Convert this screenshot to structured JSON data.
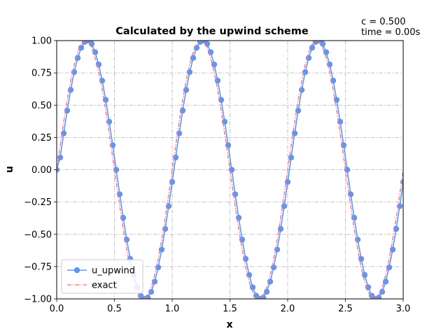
{
  "chart_data": {
    "type": "line",
    "title": "Calculated by the upwind scheme",
    "xlabel": "x",
    "ylabel": "u",
    "xlim": [
      0.0,
      3.0
    ],
    "ylim": [
      -1.0,
      1.0
    ],
    "grid": true,
    "grid_style": "dash-dot",
    "legend_placement": "lower-left",
    "annotations": [
      "c = 0.500",
      "time = 0.00s"
    ],
    "x_ticks": [
      0.0,
      0.5,
      1.0,
      1.5,
      2.0,
      2.5,
      3.0
    ],
    "x_tick_labels": [
      "0.0",
      "0.5",
      "1.0",
      "1.5",
      "2.0",
      "2.5",
      "3.0"
    ],
    "y_ticks": [
      -1.0,
      -0.75,
      -0.5,
      -0.25,
      0.0,
      0.25,
      0.5,
      0.75,
      1.0
    ],
    "y_tick_labels": [
      "−1.00",
      "−0.75",
      "−0.50",
      "−0.25",
      "0.00",
      "0.25",
      "0.50",
      "0.75",
      "1.00"
    ],
    "series": [
      {
        "name": "u_upwind",
        "color": "#6495ED",
        "style": "solid line with circle markers",
        "x": [
          0.0,
          0.0303,
          0.0606,
          0.0909,
          0.1212,
          0.1515,
          0.1818,
          0.2121,
          0.2424,
          0.2727,
          0.303,
          0.3333,
          0.3636,
          0.3939,
          0.4242,
          0.4545,
          0.4848,
          0.5152,
          0.5455,
          0.5758,
          0.6061,
          0.6364,
          0.6667,
          0.697,
          0.7273,
          0.7576,
          0.7879,
          0.8182,
          0.8485,
          0.8788,
          0.9091,
          0.9394,
          0.9697,
          1.0,
          1.0303,
          1.0606,
          1.0909,
          1.1212,
          1.1515,
          1.1818,
          1.2121,
          1.2424,
          1.2727,
          1.303,
          1.3333,
          1.3636,
          1.3939,
          1.4242,
          1.4545,
          1.4848,
          1.5152,
          1.5455,
          1.5758,
          1.6061,
          1.6364,
          1.6667,
          1.697,
          1.7273,
          1.7576,
          1.7879,
          1.8182,
          1.8485,
          1.8788,
          1.9091,
          1.9394,
          1.9697,
          2.0,
          2.0303,
          2.0606,
          2.0909,
          2.1212,
          2.1515,
          2.1818,
          2.2121,
          2.2424,
          2.2727,
          2.303,
          2.3333,
          2.3636,
          2.3939,
          2.4242,
          2.4545,
          2.4848,
          2.5152,
          2.5455,
          2.5758,
          2.6061,
          2.6364,
          2.6667,
          2.697,
          2.7273,
          2.7576,
          2.7879,
          2.8182,
          2.8485,
          2.8788,
          2.9091,
          2.9394,
          2.9697,
          3.0
        ],
        "y": [
          0.0,
          0.095,
          0.282,
          0.458,
          0.618,
          0.756,
          0.866,
          0.945,
          0.99,
          1.0,
          0.975,
          0.91,
          0.815,
          0.69,
          0.541,
          0.372,
          0.19,
          0.0,
          -0.19,
          -0.372,
          -0.541,
          -0.69,
          -0.815,
          -0.91,
          -0.975,
          -1.0,
          -0.99,
          -0.945,
          -0.866,
          -0.756,
          -0.618,
          -0.458,
          -0.282,
          -0.095,
          0.095,
          0.282,
          0.458,
          0.618,
          0.756,
          0.866,
          0.945,
          0.99,
          1.0,
          0.975,
          0.91,
          0.815,
          0.69,
          0.541,
          0.372,
          0.19,
          0.0,
          -0.19,
          -0.372,
          -0.541,
          -0.69,
          -0.815,
          -0.91,
          -0.975,
          -1.0,
          -0.99,
          -0.945,
          -0.866,
          -0.756,
          -0.618,
          -0.458,
          -0.282,
          -0.095,
          0.095,
          0.282,
          0.458,
          0.618,
          0.756,
          0.866,
          0.945,
          0.99,
          1.0,
          0.975,
          0.91,
          0.815,
          0.69,
          0.541,
          0.372,
          0.19,
          0.0,
          -0.19,
          -0.372,
          -0.541,
          -0.69,
          -0.815,
          -0.91,
          -0.975,
          -1.0,
          -0.99,
          -0.945,
          -0.866,
          -0.756,
          -0.618,
          -0.458,
          -0.282,
          -0.095
        ]
      },
      {
        "name": "exact",
        "color": "#F08080",
        "style": "dash-dot line",
        "function": "sin(2*pi*x)",
        "x": [
          0.0,
          0.025,
          0.05,
          0.075,
          0.1,
          0.125,
          0.15,
          0.175,
          0.2,
          0.225,
          0.25,
          0.275,
          0.3,
          0.325,
          0.35,
          0.375,
          0.4,
          0.425,
          0.45,
          0.475,
          0.5,
          0.525,
          0.55,
          0.575,
          0.6,
          0.625,
          0.65,
          0.675,
          0.7,
          0.725,
          0.75,
          0.775,
          0.8,
          0.825,
          0.85,
          0.875,
          0.9,
          0.925,
          0.95,
          0.975,
          1.0,
          1.025,
          1.05,
          1.075,
          1.1,
          1.125,
          1.15,
          1.175,
          1.2,
          1.225,
          1.25,
          1.275,
          1.3,
          1.325,
          1.35,
          1.375,
          1.4,
          1.425,
          1.45,
          1.475,
          1.5,
          1.525,
          1.55,
          1.575,
          1.6,
          1.625,
          1.65,
          1.675,
          1.7,
          1.725,
          1.75,
          1.775,
          1.8,
          1.825,
          1.85,
          1.875,
          1.9,
          1.925,
          1.95,
          1.975,
          2.0,
          2.025,
          2.05,
          2.075,
          2.1,
          2.125,
          2.15,
          2.175,
          2.2,
          2.225,
          2.25,
          2.275,
          2.3,
          2.325,
          2.35,
          2.375,
          2.4,
          2.425,
          2.45,
          2.475,
          2.5,
          2.525,
          2.55,
          2.575,
          2.6,
          2.625,
          2.65,
          2.675,
          2.7,
          2.725,
          2.75,
          2.775,
          2.8,
          2.825,
          2.85,
          2.875,
          2.9,
          2.925,
          2.95,
          2.975,
          3.0
        ],
        "y": [
          0.0,
          0.156,
          0.309,
          0.454,
          0.588,
          0.707,
          0.809,
          0.891,
          0.951,
          0.988,
          1.0,
          0.988,
          0.951,
          0.891,
          0.809,
          0.707,
          0.588,
          0.454,
          0.309,
          0.156,
          0.0,
          -0.156,
          -0.309,
          -0.454,
          -0.588,
          -0.707,
          -0.809,
          -0.891,
          -0.951,
          -0.988,
          -1.0,
          -0.988,
          -0.951,
          -0.891,
          -0.809,
          -0.707,
          -0.588,
          -0.454,
          -0.309,
          -0.156,
          0.0,
          0.156,
          0.309,
          0.454,
          0.588,
          0.707,
          0.809,
          0.891,
          0.951,
          0.988,
          1.0,
          0.988,
          0.951,
          0.891,
          0.809,
          0.707,
          0.588,
          0.454,
          0.309,
          0.156,
          0.0,
          -0.156,
          -0.309,
          -0.454,
          -0.588,
          -0.707,
          -0.809,
          -0.891,
          -0.951,
          -0.988,
          -1.0,
          -0.988,
          -0.951,
          -0.891,
          -0.809,
          -0.707,
          -0.588,
          -0.454,
          -0.309,
          -0.156,
          0.0,
          0.156,
          0.309,
          0.454,
          0.588,
          0.707,
          0.809,
          0.891,
          0.951,
          0.988,
          1.0,
          0.988,
          0.951,
          0.891,
          0.809,
          0.707,
          0.588,
          0.454,
          0.309,
          0.156,
          0.0,
          -0.156,
          -0.309,
          -0.454,
          -0.588,
          -0.707,
          -0.809,
          -0.891,
          -0.951,
          -0.988,
          -1.0,
          -0.988,
          -0.951,
          -0.891,
          -0.809,
          -0.707,
          -0.588,
          -0.454,
          -0.309,
          -0.156,
          0.0
        ]
      }
    ]
  }
}
